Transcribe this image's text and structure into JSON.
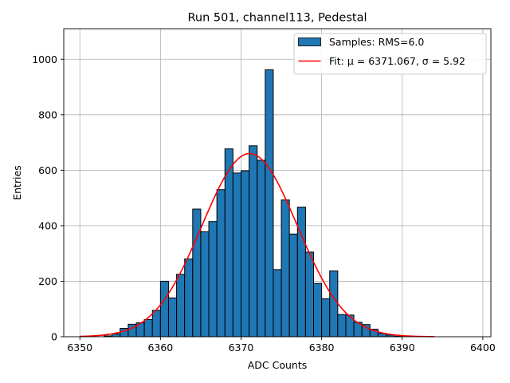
{
  "chart_data": {
    "type": "bar",
    "title": "Run 501, channel113, Pedestal",
    "xlabel": "ADC Counts",
    "ylabel": "Entries",
    "xlim": [
      6348,
      6401
    ],
    "ylim": [
      0,
      1110
    ],
    "grid": true,
    "bin_width": 1,
    "x_ticks": [
      6350,
      6360,
      6370,
      6380,
      6390,
      6400
    ],
    "y_ticks": [
      0,
      200,
      400,
      600,
      800,
      1000
    ],
    "bins": [
      {
        "left": 6353,
        "count": 3
      },
      {
        "left": 6354,
        "count": 10
      },
      {
        "left": 6355,
        "count": 30
      },
      {
        "left": 6356,
        "count": 45
      },
      {
        "left": 6357,
        "count": 50
      },
      {
        "left": 6358,
        "count": 62
      },
      {
        "left": 6359,
        "count": 95
      },
      {
        "left": 6360,
        "count": 200
      },
      {
        "left": 6361,
        "count": 140
      },
      {
        "left": 6362,
        "count": 225
      },
      {
        "left": 6363,
        "count": 280
      },
      {
        "left": 6364,
        "count": 460
      },
      {
        "left": 6365,
        "count": 378
      },
      {
        "left": 6366,
        "count": 415
      },
      {
        "left": 6367,
        "count": 530
      },
      {
        "left": 6368,
        "count": 677
      },
      {
        "left": 6369,
        "count": 590
      },
      {
        "left": 6370,
        "count": 598
      },
      {
        "left": 6371,
        "count": 688
      },
      {
        "left": 6372,
        "count": 636
      },
      {
        "left": 6373,
        "count": 962
      },
      {
        "left": 6374,
        "count": 242
      },
      {
        "left": 6375,
        "count": 493
      },
      {
        "left": 6376,
        "count": 370
      },
      {
        "left": 6377,
        "count": 467
      },
      {
        "left": 6378,
        "count": 305
      },
      {
        "left": 6379,
        "count": 192
      },
      {
        "left": 6380,
        "count": 137
      },
      {
        "left": 6381,
        "count": 237
      },
      {
        "left": 6382,
        "count": 80
      },
      {
        "left": 6383,
        "count": 78
      },
      {
        "left": 6384,
        "count": 52
      },
      {
        "left": 6385,
        "count": 44
      },
      {
        "left": 6386,
        "count": 27
      },
      {
        "left": 6387,
        "count": 12
      },
      {
        "left": 6388,
        "count": 6
      },
      {
        "left": 6389,
        "count": 2
      }
    ],
    "fit": {
      "mu": 6371.067,
      "sigma": 5.92,
      "amplitude": 660,
      "x_range": [
        6350,
        6394
      ]
    },
    "legend": {
      "position": "top-right",
      "entries": [
        {
          "label": "Samples: RMS=6.0",
          "kind": "patch"
        },
        {
          "label": "Fit: μ = 6371.067, σ = 5.92",
          "kind": "line"
        }
      ]
    },
    "colors": {
      "bar_fill": "#1f77b4",
      "bar_edge": "#000000",
      "fit_line": "#ff0000",
      "grid": "#b0b0b0"
    }
  }
}
